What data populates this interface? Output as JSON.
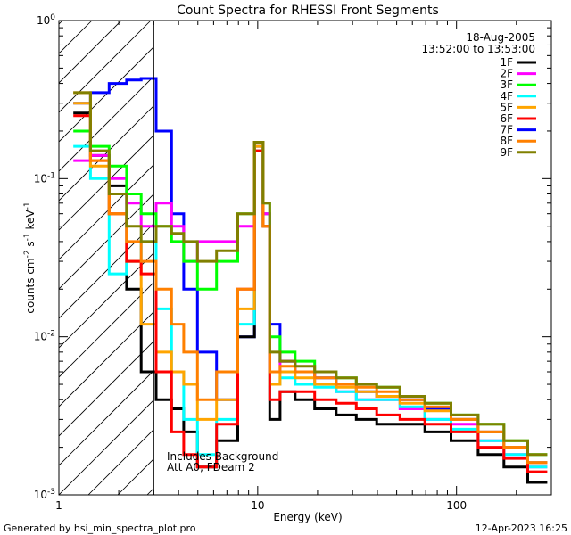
{
  "chart_data": {
    "type": "line",
    "title": "Count Spectra for RHESSI Front Segments",
    "xlabel": "Energy (keV)",
    "ylabel_parts": {
      "base": "counts cm",
      "exp1": "-2",
      "mid": " s",
      "exp2": "-1",
      "tail": " keV",
      "exp3": "-1"
    },
    "xscale": "log",
    "yscale": "log",
    "xlim": [
      1,
      300
    ],
    "ylim": [
      0.001,
      1
    ],
    "x_ticks": [
      {
        "value": 1,
        "label": "1"
      },
      {
        "value": 10,
        "label": "10"
      },
      {
        "value": 100,
        "label": "100"
      }
    ],
    "y_ticks": [
      {
        "value": 1,
        "base": "10",
        "exp": "0"
      },
      {
        "value": 0.1,
        "base": "10",
        "exp": "-1"
      },
      {
        "value": 0.01,
        "base": "10",
        "exp": "-2"
      },
      {
        "value": 0.001,
        "base": "10",
        "exp": "-3"
      }
    ],
    "date": "18-Aug-2005",
    "time_range": "13:52:00 to 13:53:00",
    "annotation_lines": [
      "Includes Background",
      "Att A0, FDeam 2"
    ],
    "hatched_region_upper_keV": 3,
    "series": [
      {
        "name": "1F",
        "color": "#000000",
        "values": [
          [
            1.3,
            0.26
          ],
          [
            1.6,
            0.14
          ],
          [
            2.0,
            0.09
          ],
          [
            2.4,
            0.02
          ],
          [
            2.8,
            0.006
          ],
          [
            3.4,
            0.004
          ],
          [
            4.0,
            0.0035
          ],
          [
            4.5,
            0.0025
          ],
          [
            5.5,
            0.0015
          ],
          [
            7,
            0.0022
          ],
          [
            9,
            0.01
          ],
          [
            10.3,
            0.17
          ],
          [
            11,
            0.05
          ],
          [
            12,
            0.003
          ],
          [
            14,
            0.0045
          ],
          [
            17,
            0.004
          ],
          [
            22,
            0.0035
          ],
          [
            28,
            0.0032
          ],
          [
            35,
            0.003
          ],
          [
            45,
            0.0028
          ],
          [
            60,
            0.0028
          ],
          [
            80,
            0.0025
          ],
          [
            110,
            0.0022
          ],
          [
            150,
            0.0018
          ],
          [
            200,
            0.0015
          ],
          [
            260,
            0.0012
          ]
        ]
      },
      {
        "name": "2F",
        "color": "#ff00ff",
        "values": [
          [
            1.3,
            0.13
          ],
          [
            1.6,
            0.14
          ],
          [
            2.0,
            0.1
          ],
          [
            2.4,
            0.07
          ],
          [
            2.8,
            0.05
          ],
          [
            3.4,
            0.07
          ],
          [
            4.0,
            0.05
          ],
          [
            4.5,
            0.03
          ],
          [
            5.5,
            0.04
          ],
          [
            7,
            0.04
          ],
          [
            9,
            0.05
          ],
          [
            10.3,
            0.17
          ],
          [
            11,
            0.06
          ],
          [
            12,
            0.006
          ],
          [
            14,
            0.007
          ],
          [
            17,
            0.006
          ],
          [
            22,
            0.005
          ],
          [
            28,
            0.0045
          ],
          [
            35,
            0.004
          ],
          [
            45,
            0.004
          ],
          [
            60,
            0.0035
          ],
          [
            80,
            0.003
          ],
          [
            110,
            0.0028
          ],
          [
            150,
            0.0022
          ],
          [
            200,
            0.0018
          ],
          [
            260,
            0.0015
          ]
        ]
      },
      {
        "name": "3F",
        "color": "#00ff00",
        "values": [
          [
            1.3,
            0.2
          ],
          [
            1.6,
            0.16
          ],
          [
            2.0,
            0.12
          ],
          [
            2.4,
            0.08
          ],
          [
            2.8,
            0.06
          ],
          [
            3.4,
            0.05
          ],
          [
            4.0,
            0.04
          ],
          [
            4.5,
            0.03
          ],
          [
            5.5,
            0.02
          ],
          [
            7,
            0.03
          ],
          [
            9,
            0.06
          ],
          [
            10.3,
            0.17
          ],
          [
            11,
            0.07
          ],
          [
            12,
            0.01
          ],
          [
            14,
            0.008
          ],
          [
            17,
            0.007
          ],
          [
            22,
            0.006
          ],
          [
            28,
            0.0055
          ],
          [
            35,
            0.005
          ],
          [
            45,
            0.0048
          ],
          [
            60,
            0.0042
          ],
          [
            80,
            0.0038
          ],
          [
            110,
            0.0032
          ],
          [
            150,
            0.0028
          ],
          [
            200,
            0.0022
          ],
          [
            260,
            0.0018
          ]
        ]
      },
      {
        "name": "4F",
        "color": "#00ffff",
        "values": [
          [
            1.3,
            0.16
          ],
          [
            1.6,
            0.1
          ],
          [
            2.0,
            0.025
          ],
          [
            2.4,
            0.03
          ],
          [
            2.8,
            0.04
          ],
          [
            3.4,
            0.015
          ],
          [
            4.0,
            0.006
          ],
          [
            4.5,
            0.003
          ],
          [
            5.5,
            0.0018
          ],
          [
            7,
            0.003
          ],
          [
            9,
            0.012
          ],
          [
            10.3,
            0.15
          ],
          [
            11,
            0.05
          ],
          [
            12,
            0.005
          ],
          [
            14,
            0.0055
          ],
          [
            17,
            0.005
          ],
          [
            22,
            0.0048
          ],
          [
            28,
            0.0045
          ],
          [
            35,
            0.004
          ],
          [
            45,
            0.004
          ],
          [
            60,
            0.0036
          ],
          [
            80,
            0.003
          ],
          [
            110,
            0.0026
          ],
          [
            150,
            0.0022
          ],
          [
            200,
            0.0018
          ],
          [
            260,
            0.0015
          ]
        ]
      },
      {
        "name": "5F",
        "color": "#ffa500",
        "values": [
          [
            1.3,
            0.3
          ],
          [
            1.6,
            0.12
          ],
          [
            2.0,
            0.06
          ],
          [
            2.4,
            0.03
          ],
          [
            2.8,
            0.012
          ],
          [
            3.4,
            0.008
          ],
          [
            4.0,
            0.006
          ],
          [
            4.5,
            0.005
          ],
          [
            5.5,
            0.003
          ],
          [
            7,
            0.004
          ],
          [
            9,
            0.015
          ],
          [
            10.3,
            0.16
          ],
          [
            11,
            0.05
          ],
          [
            12,
            0.005
          ],
          [
            14,
            0.006
          ],
          [
            17,
            0.0055
          ],
          [
            22,
            0.005
          ],
          [
            28,
            0.0048
          ],
          [
            35,
            0.0045
          ],
          [
            45,
            0.0042
          ],
          [
            60,
            0.0038
          ],
          [
            80,
            0.0034
          ],
          [
            110,
            0.003
          ],
          [
            150,
            0.0025
          ],
          [
            200,
            0.002
          ],
          [
            260,
            0.0016
          ]
        ]
      },
      {
        "name": "6F",
        "color": "#ff0000",
        "values": [
          [
            1.3,
            0.25
          ],
          [
            1.6,
            0.13
          ],
          [
            2.0,
            0.06
          ],
          [
            2.4,
            0.03
          ],
          [
            2.8,
            0.025
          ],
          [
            3.4,
            0.006
          ],
          [
            4.0,
            0.0025
          ],
          [
            4.5,
            0.0018
          ],
          [
            5.5,
            0.0015
          ],
          [
            7,
            0.0028
          ],
          [
            9,
            0.02
          ],
          [
            10.3,
            0.15
          ],
          [
            11,
            0.05
          ],
          [
            12,
            0.004
          ],
          [
            14,
            0.0045
          ],
          [
            17,
            0.0045
          ],
          [
            22,
            0.004
          ],
          [
            28,
            0.0038
          ],
          [
            35,
            0.0035
          ],
          [
            45,
            0.0032
          ],
          [
            60,
            0.003
          ],
          [
            80,
            0.0028
          ],
          [
            110,
            0.0025
          ],
          [
            150,
            0.002
          ],
          [
            200,
            0.0017
          ],
          [
            260,
            0.0014
          ]
        ]
      },
      {
        "name": "7F",
        "color": "#0000ff",
        "values": [
          [
            1.3,
            0.3
          ],
          [
            1.6,
            0.35
          ],
          [
            2.0,
            0.4
          ],
          [
            2.4,
            0.42
          ],
          [
            2.8,
            0.43
          ],
          [
            3.4,
            0.2
          ],
          [
            4.0,
            0.06
          ],
          [
            4.5,
            0.02
          ],
          [
            5.5,
            0.008
          ],
          [
            7,
            0.004
          ],
          [
            9,
            0.01
          ],
          [
            10.3,
            0.16
          ],
          [
            11,
            0.06
          ],
          [
            12,
            0.012
          ],
          [
            14,
            0.007
          ],
          [
            17,
            0.006
          ],
          [
            22,
            0.0055
          ],
          [
            28,
            0.005
          ],
          [
            35,
            0.0045
          ],
          [
            45,
            0.0042
          ],
          [
            60,
            0.004
          ],
          [
            80,
            0.0035
          ],
          [
            110,
            0.003
          ],
          [
            150,
            0.0025
          ],
          [
            200,
            0.002
          ],
          [
            260,
            0.0016
          ]
        ]
      },
      {
        "name": "8F",
        "color": "#ff8000",
        "values": [
          [
            1.3,
            0.35
          ],
          [
            1.6,
            0.13
          ],
          [
            2.0,
            0.06
          ],
          [
            2.4,
            0.04
          ],
          [
            2.8,
            0.03
          ],
          [
            3.4,
            0.02
          ],
          [
            4.0,
            0.012
          ],
          [
            4.5,
            0.008
          ],
          [
            5.5,
            0.004
          ],
          [
            7,
            0.006
          ],
          [
            9,
            0.02
          ],
          [
            10.3,
            0.17
          ],
          [
            11,
            0.05
          ],
          [
            12,
            0.006
          ],
          [
            14,
            0.0065
          ],
          [
            17,
            0.006
          ],
          [
            22,
            0.0055
          ],
          [
            28,
            0.005
          ],
          [
            35,
            0.0048
          ],
          [
            45,
            0.0045
          ],
          [
            60,
            0.004
          ],
          [
            80,
            0.0036
          ],
          [
            110,
            0.003
          ],
          [
            150,
            0.0025
          ],
          [
            200,
            0.002
          ],
          [
            260,
            0.0016
          ]
        ]
      },
      {
        "name": "9F",
        "color": "#808000",
        "values": [
          [
            1.3,
            0.35
          ],
          [
            1.6,
            0.15
          ],
          [
            2.0,
            0.08
          ],
          [
            2.4,
            0.05
          ],
          [
            2.8,
            0.04
          ],
          [
            3.4,
            0.05
          ],
          [
            4.0,
            0.045
          ],
          [
            4.5,
            0.04
          ],
          [
            5.5,
            0.03
          ],
          [
            7,
            0.035
          ],
          [
            9,
            0.06
          ],
          [
            10.3,
            0.17
          ],
          [
            11,
            0.07
          ],
          [
            12,
            0.008
          ],
          [
            14,
            0.007
          ],
          [
            17,
            0.0065
          ],
          [
            22,
            0.006
          ],
          [
            28,
            0.0055
          ],
          [
            35,
            0.005
          ],
          [
            45,
            0.0048
          ],
          [
            60,
            0.0042
          ],
          [
            80,
            0.0038
          ],
          [
            110,
            0.0032
          ],
          [
            150,
            0.0028
          ],
          [
            200,
            0.0022
          ],
          [
            260,
            0.0018
          ]
        ]
      }
    ]
  },
  "legend_lines": [
    {
      "color": "#ffcc00"
    },
    {
      "color": "#cccc00"
    }
  ],
  "footer": {
    "generated_by": "Generated by hsi_min_spectra_plot.pro",
    "timestamp": "12-Apr-2023 16:25"
  }
}
